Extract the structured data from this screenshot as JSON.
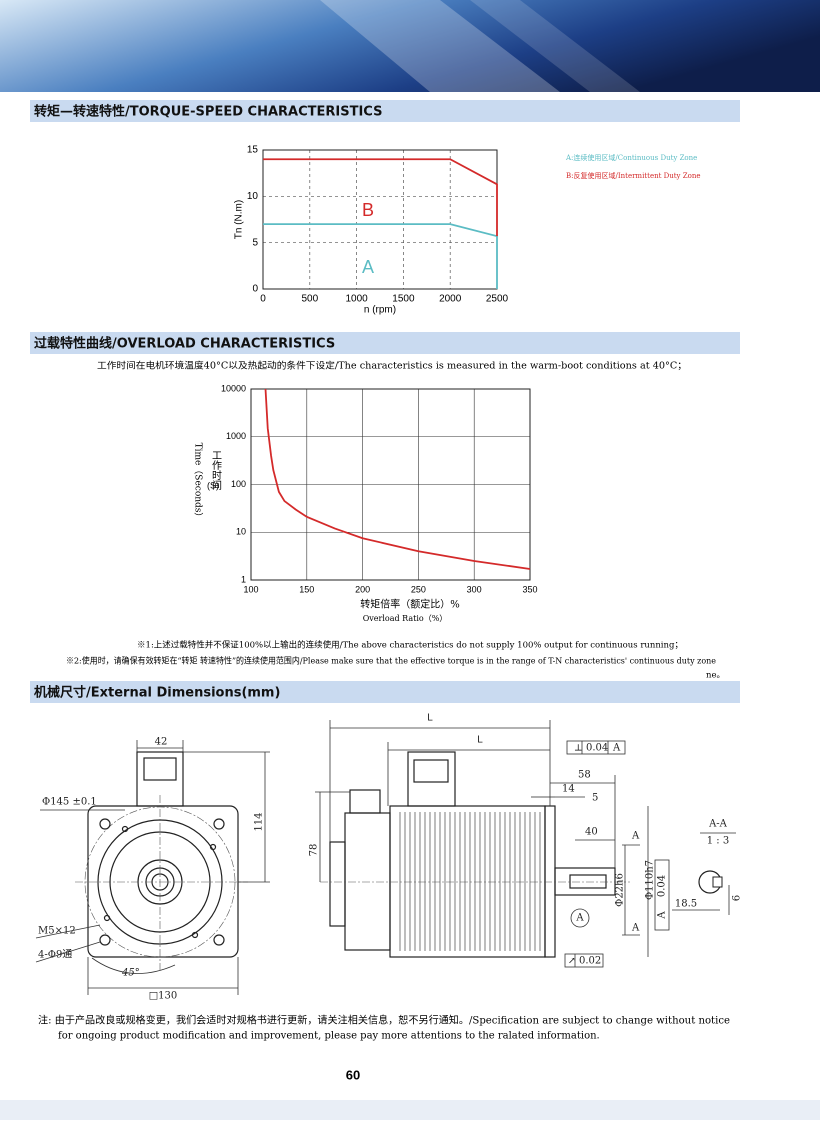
{
  "sections": [
    {
      "title": "转矩—转速特性/TORQUE-SPEED CHARACTERISTICS"
    },
    {
      "title": "过载特性曲线/OVERLOAD CHARACTERISTICS"
    },
    {
      "title": "机械尺寸/External Dimensions(mm)"
    }
  ],
  "chart_data": [
    {
      "type": "line",
      "y_label": "Tn (N.m)",
      "x_label": "n (rpm)",
      "xlim": [
        0,
        2500
      ],
      "xticks": [
        0,
        500,
        1000,
        1500,
        2000,
        2500
      ],
      "ylim": [
        0,
        15
      ],
      "yticks": [
        0,
        5,
        10,
        15
      ],
      "grid": true,
      "series": [
        {
          "name": "A:连续使用区域/Continuous Duty Zone",
          "color": "#5bbcc4",
          "x": [
            0,
            2000,
            2500,
            2500
          ],
          "values": [
            7,
            7,
            5.7,
            0
          ]
        },
        {
          "name": "B:反复使用区域/Intermittent Duty Zone",
          "color": "#d42a2a",
          "x": [
            0,
            2000,
            2500,
            2500
          ],
          "values": [
            14,
            14,
            11.3,
            5.7
          ]
        }
      ],
      "annotations": [
        "A",
        "B"
      ]
    },
    {
      "type": "line",
      "title": "工作时间在电机环境温度40°C以及热起动的条件下设定/The characteristics is measured in the warm-boot conditions at 40°C；",
      "y_label_cn": "工作时间",
      "y_label_unit": "(S)",
      "y_label_en": "Time（Seconds）",
      "x_label": "转矩倍率（额定比）%",
      "x_label_en": "Overload Ratio（%）",
      "log_y": true,
      "xlim": [
        100,
        350
      ],
      "xticks": [
        100,
        150,
        200,
        250,
        300,
        350
      ],
      "ylim": [
        1,
        10000
      ],
      "yticks": [
        1,
        10,
        100,
        1000,
        10000
      ],
      "grid": true,
      "color": "#d42a2a",
      "x": [
        113,
        115,
        118,
        120,
        125,
        130,
        140,
        150,
        175,
        200,
        250,
        300,
        350
      ],
      "values": [
        10000,
        1500,
        400,
        200,
        70,
        45,
        30,
        21,
        12,
        7.5,
        4,
        2.5,
        1.7
      ]
    }
  ],
  "notes": [
    "※1:上述过载特性并不保证100%以上输出的连续使用/The above characteristics do not supply 100% output for continuous running；",
    "※2:使用时，请确保有效转矩在“转矩 转速特性”的连续使用范围内/Please make sure that the effective torque is in the range of T-N characteristics' continuous duty zone",
    "ne。"
  ],
  "dimensions": [
    "42",
    "114",
    "Φ145 ±0.1",
    "M5×12",
    "4-Φ9通",
    "45°",
    "□130",
    "L",
    "L",
    "0.04",
    "A",
    "58",
    "14",
    "5",
    "40",
    "78",
    "A",
    "A",
    "Φ22h6",
    "Φ110h7",
    "0.04",
    "A",
    "A",
    "0.02",
    "A-A",
    "1 : 3",
    "18.5",
    "6"
  ],
  "footer": {
    "note": "注:  由于产品改良或规格变更，我们会适时对规格书进行更新，请关注相关信息，恕不另行通知。/Specification are subject to change without notice",
    "note_cont": "for ongoing product modification and improvement, please pay more attentions to the ralated information.",
    "page": "60"
  }
}
